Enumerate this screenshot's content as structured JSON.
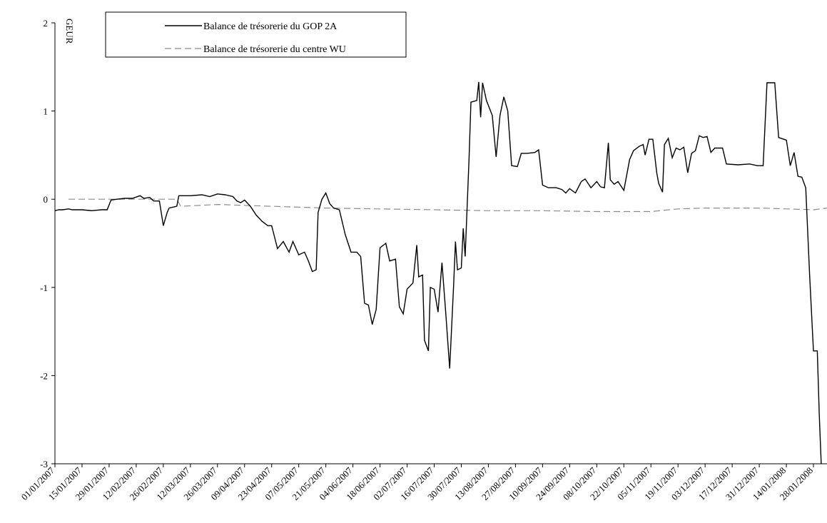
{
  "chart_data": {
    "type": "line",
    "ylabel": "GEUR",
    "ylim": [
      -3,
      2
    ],
    "yticks": [
      "-3",
      "-2",
      "-1",
      "0",
      "1",
      "2"
    ],
    "xrange": [
      "2007-01-01",
      "2008-02-04"
    ],
    "xticks": [
      "01/01/2007",
      "15/01/2007",
      "29/01/2007",
      "12/02/2007",
      "26/02/2007",
      "12/03/2007",
      "26/03/2007",
      "09/04/2007",
      "23/04/2007",
      "07/05/2007",
      "21/05/2007",
      "04/06/2007",
      "18/06/2007",
      "02/07/2007",
      "16/07/2007",
      "30/07/2007",
      "13/08/2007",
      "27/08/2007",
      "10/09/2007",
      "24/09/2007",
      "08/10/2007",
      "22/10/2007",
      "05/11/2007",
      "19/11/2007",
      "03/12/2007",
      "17/12/2007",
      "31/12/2007",
      "14/01/2008",
      "28/01/2008"
    ],
    "grid": false,
    "legend_position": "top-left",
    "colors": {
      "gop": "#000000",
      "wu": "#8c8c8c"
    },
    "series": [
      {
        "name": "Balance de trésorerie du GOP 2A",
        "style": "solid",
        "points": [
          [
            "2007-01-01",
            -0.13
          ],
          [
            "2007-01-03",
            -0.12
          ],
          [
            "2007-01-05",
            -0.12
          ],
          [
            "2007-01-08",
            -0.11
          ],
          [
            "2007-01-10",
            -0.12
          ],
          [
            "2007-01-15",
            -0.12
          ],
          [
            "2007-01-20",
            -0.13
          ],
          [
            "2007-01-25",
            -0.12
          ],
          [
            "2007-01-28",
            -0.12
          ],
          [
            "2007-01-30",
            -0.01
          ],
          [
            "2007-02-02",
            0.0
          ],
          [
            "2007-02-06",
            0.01
          ],
          [
            "2007-02-10",
            0.01
          ],
          [
            "2007-02-14",
            0.04
          ],
          [
            "2007-02-16",
            0.01
          ],
          [
            "2007-02-19",
            0.02
          ],
          [
            "2007-02-21",
            -0.02
          ],
          [
            "2007-02-24",
            -0.02
          ],
          [
            "2007-02-26",
            -0.3
          ],
          [
            "2007-02-28",
            -0.15
          ],
          [
            "2007-03-01",
            -0.1
          ],
          [
            "2007-03-05",
            -0.08
          ],
          [
            "2007-03-06",
            0.04
          ],
          [
            "2007-03-12",
            0.04
          ],
          [
            "2007-03-18",
            0.05
          ],
          [
            "2007-03-22",
            0.03
          ],
          [
            "2007-03-26",
            0.06
          ],
          [
            "2007-03-30",
            0.05
          ],
          [
            "2007-04-03",
            0.03
          ],
          [
            "2007-04-05",
            -0.02
          ],
          [
            "2007-04-07",
            -0.04
          ],
          [
            "2007-04-09",
            -0.01
          ],
          [
            "2007-04-12",
            -0.08
          ],
          [
            "2007-04-15",
            -0.18
          ],
          [
            "2007-04-18",
            -0.25
          ],
          [
            "2007-04-21",
            -0.3
          ],
          [
            "2007-04-23",
            -0.3
          ],
          [
            "2007-04-26",
            -0.56
          ],
          [
            "2007-04-29",
            -0.48
          ],
          [
            "2007-05-02",
            -0.6
          ],
          [
            "2007-05-04",
            -0.48
          ],
          [
            "2007-05-07",
            -0.63
          ],
          [
            "2007-05-10",
            -0.6
          ],
          [
            "2007-05-12",
            -0.7
          ],
          [
            "2007-05-14",
            -0.82
          ],
          [
            "2007-05-16",
            -0.8
          ],
          [
            "2007-05-17",
            -0.15
          ],
          [
            "2007-05-19",
            0.0
          ],
          [
            "2007-05-21",
            0.07
          ],
          [
            "2007-05-23",
            -0.05
          ],
          [
            "2007-05-25",
            -0.1
          ],
          [
            "2007-05-28",
            -0.12
          ],
          [
            "2007-05-31",
            -0.4
          ],
          [
            "2007-06-03",
            -0.6
          ],
          [
            "2007-06-06",
            -0.6
          ],
          [
            "2007-06-08",
            -0.65
          ],
          [
            "2007-06-10",
            -1.18
          ],
          [
            "2007-06-12",
            -1.2
          ],
          [
            "2007-06-14",
            -1.42
          ],
          [
            "2007-06-16",
            -1.25
          ],
          [
            "2007-06-18",
            -0.55
          ],
          [
            "2007-06-21",
            -0.5
          ],
          [
            "2007-06-23",
            -0.7
          ],
          [
            "2007-06-26",
            -0.68
          ],
          [
            "2007-06-28",
            -1.22
          ],
          [
            "2007-06-30",
            -1.3
          ],
          [
            "2007-07-02",
            -1.02
          ],
          [
            "2007-07-05",
            -0.95
          ],
          [
            "2007-07-07",
            -0.52
          ],
          [
            "2007-07-08",
            -0.88
          ],
          [
            "2007-07-10",
            -0.86
          ],
          [
            "2007-07-11",
            -1.6
          ],
          [
            "2007-07-13",
            -1.72
          ],
          [
            "2007-07-14",
            -1.0
          ],
          [
            "2007-07-16",
            -1.02
          ],
          [
            "2007-07-18",
            -1.28
          ],
          [
            "2007-07-20",
            -0.72
          ],
          [
            "2007-07-22",
            -1.3
          ],
          [
            "2007-07-24",
            -1.92
          ],
          [
            "2007-07-26",
            -1.0
          ],
          [
            "2007-07-27",
            -0.48
          ],
          [
            "2007-07-28",
            -0.8
          ],
          [
            "2007-07-30",
            -0.78
          ],
          [
            "2007-07-31",
            -0.33
          ],
          [
            "2007-08-01",
            -0.65
          ],
          [
            "2007-08-03",
            0.45
          ],
          [
            "2007-08-04",
            1.1
          ],
          [
            "2007-08-07",
            1.12
          ],
          [
            "2007-08-08",
            1.33
          ],
          [
            "2007-08-09",
            0.93
          ],
          [
            "2007-08-10",
            1.32
          ],
          [
            "2007-08-12",
            1.12
          ],
          [
            "2007-08-15",
            0.95
          ],
          [
            "2007-08-17",
            0.48
          ],
          [
            "2007-08-19",
            0.95
          ],
          [
            "2007-08-21",
            1.16
          ],
          [
            "2007-08-23",
            1.0
          ],
          [
            "2007-08-25",
            0.38
          ],
          [
            "2007-08-28",
            0.37
          ],
          [
            "2007-08-30",
            0.52
          ],
          [
            "2007-09-02",
            0.52
          ],
          [
            "2007-09-06",
            0.53
          ],
          [
            "2007-09-08",
            0.56
          ],
          [
            "2007-09-10",
            0.16
          ],
          [
            "2007-09-13",
            0.13
          ],
          [
            "2007-09-17",
            0.13
          ],
          [
            "2007-09-20",
            0.11
          ],
          [
            "2007-09-22",
            0.07
          ],
          [
            "2007-09-24",
            0.12
          ],
          [
            "2007-09-27",
            0.07
          ],
          [
            "2007-09-30",
            0.2
          ],
          [
            "2007-10-02",
            0.23
          ],
          [
            "2007-10-05",
            0.13
          ],
          [
            "2007-10-08",
            0.2
          ],
          [
            "2007-10-10",
            0.14
          ],
          [
            "2007-10-12",
            0.13
          ],
          [
            "2007-10-14",
            0.64
          ],
          [
            "2007-10-15",
            0.22
          ],
          [
            "2007-10-17",
            0.17
          ],
          [
            "2007-10-19",
            0.2
          ],
          [
            "2007-10-22",
            0.1
          ],
          [
            "2007-10-25",
            0.45
          ],
          [
            "2007-10-27",
            0.55
          ],
          [
            "2007-10-30",
            0.6
          ],
          [
            "2007-11-01",
            0.62
          ],
          [
            "2007-11-02",
            0.5
          ],
          [
            "2007-11-04",
            0.68
          ],
          [
            "2007-11-06",
            0.68
          ],
          [
            "2007-11-08",
            0.3
          ],
          [
            "2007-11-09",
            0.18
          ],
          [
            "2007-11-11",
            0.08
          ],
          [
            "2007-11-12",
            0.62
          ],
          [
            "2007-11-14",
            0.69
          ],
          [
            "2007-11-16",
            0.47
          ],
          [
            "2007-11-18",
            0.58
          ],
          [
            "2007-11-20",
            0.56
          ],
          [
            "2007-11-22",
            0.59
          ],
          [
            "2007-11-24",
            0.3
          ],
          [
            "2007-11-26",
            0.52
          ],
          [
            "2007-11-28",
            0.55
          ],
          [
            "2007-11-30",
            0.72
          ],
          [
            "2007-12-02",
            0.7
          ],
          [
            "2007-12-04",
            0.71
          ],
          [
            "2007-12-06",
            0.53
          ],
          [
            "2007-12-08",
            0.58
          ],
          [
            "2007-12-12",
            0.58
          ],
          [
            "2007-12-14",
            0.4
          ],
          [
            "2007-12-20",
            0.39
          ],
          [
            "2007-12-26",
            0.4
          ],
          [
            "2007-12-30",
            0.38
          ],
          [
            "2008-01-02",
            0.38
          ],
          [
            "2008-01-04",
            1.32
          ],
          [
            "2008-01-08",
            1.32
          ],
          [
            "2008-01-10",
            0.7
          ],
          [
            "2008-01-14",
            0.67
          ],
          [
            "2008-01-16",
            0.38
          ],
          [
            "2008-01-18",
            0.53
          ],
          [
            "2008-01-20",
            0.26
          ],
          [
            "2008-01-22",
            0.25
          ],
          [
            "2008-01-24",
            0.13
          ],
          [
            "2008-01-26",
            -0.85
          ],
          [
            "2008-01-28",
            -1.72
          ],
          [
            "2008-01-30",
            -1.72
          ],
          [
            "2008-01-31",
            -2.45
          ],
          [
            "2008-02-01",
            -3.0
          ]
        ]
      },
      {
        "name": "Balance de trésorerie du centre WU",
        "style": "dashed",
        "points": [
          [
            "2007-01-08",
            0.0
          ],
          [
            "2007-02-24",
            0.0
          ],
          [
            "2007-03-05",
            0.0
          ],
          [
            "2007-03-07",
            -0.08
          ],
          [
            "2007-03-26",
            -0.06
          ],
          [
            "2007-04-23",
            -0.08
          ],
          [
            "2007-05-21",
            -0.1
          ],
          [
            "2007-06-18",
            -0.11
          ],
          [
            "2007-07-16",
            -0.12
          ],
          [
            "2007-08-13",
            -0.13
          ],
          [
            "2007-09-10",
            -0.13
          ],
          [
            "2007-10-08",
            -0.14
          ],
          [
            "2007-11-05",
            -0.14
          ],
          [
            "2007-11-19",
            -0.11
          ],
          [
            "2007-12-03",
            -0.1
          ],
          [
            "2007-12-31",
            -0.1
          ],
          [
            "2008-01-28",
            -0.12
          ],
          [
            "2008-02-04",
            -0.1
          ]
        ]
      }
    ]
  }
}
